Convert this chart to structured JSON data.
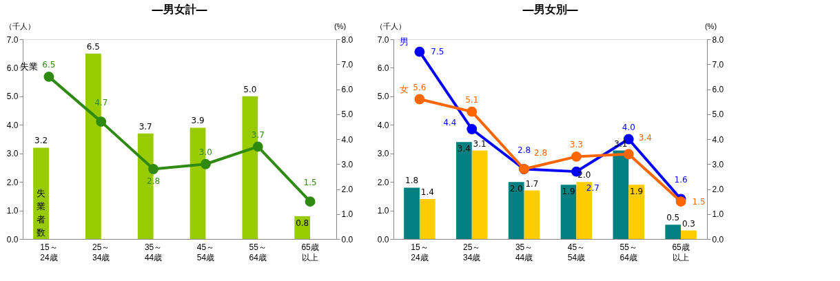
{
  "chart_data": [
    {
      "type": "bar",
      "title": "―男女計―",
      "ylabel": "（千人）",
      "y2label": "(%)",
      "categories": [
        "15～24歳",
        "25～34歳",
        "35～44歳",
        "45～54歳",
        "55～64歳",
        "65歳以上"
      ],
      "series": [
        {
          "name": "失業者数",
          "color": "#99cc00",
          "values": [
            3.2,
            6.5,
            3.7,
            3.9,
            5.0,
            0.8
          ],
          "value_labels": [
            "3.2",
            "6.5",
            "3.7",
            "3.9",
            "5.0",
            "0.8"
          ]
        },
        {
          "type": "line",
          "axis": "y2",
          "name": "失業",
          "color": "#2f8a12",
          "values": [
            6.5,
            4.7,
            2.8,
            3.0,
            3.7,
            1.5
          ],
          "value_labels": [
            "6.5",
            "4.7",
            "2.8",
            "3.0",
            "3.7",
            "1.5"
          ]
        }
      ],
      "ylim": [
        0,
        7
      ],
      "yticks": [
        {
          "value": 0,
          "label": "0.0"
        },
        {
          "value": 1,
          "label": "1.0"
        },
        {
          "value": 2,
          "label": "2.0"
        },
        {
          "value": 3,
          "label": "3.0"
        },
        {
          "value": 4,
          "label": "4.0"
        },
        {
          "value": 5,
          "label": "5.0"
        },
        {
          "value": 6,
          "label": "6.0"
        },
        {
          "value": 7,
          "label": "7.0"
        }
      ],
      "y2lim": [
        0,
        8
      ],
      "y2ticks": [
        {
          "value": 0,
          "label": "0.0"
        },
        {
          "value": 1,
          "label": "1.0"
        },
        {
          "value": 2,
          "label": "2.0"
        },
        {
          "value": 3,
          "label": "3.0"
        },
        {
          "value": 4,
          "label": "4.0"
        },
        {
          "value": 5,
          "label": "5.0"
        },
        {
          "value": 6,
          "label": "6.0"
        },
        {
          "value": 7,
          "label": "7.0"
        },
        {
          "value": 8,
          "label": "8.0"
        }
      ],
      "marker": "circle",
      "line_style": "solid"
    },
    {
      "type": "bar",
      "title": "―男女別―",
      "ylabel": "（千人）",
      "y2label": "(%)",
      "categories": [
        "15～24歳",
        "25～34歳",
        "35～44歳",
        "45～54歳",
        "55～64歳",
        "65歳以上"
      ],
      "series": [
        {
          "color": "#008080",
          "values": [
            1.8,
            3.4,
            2.0,
            1.9,
            3.1,
            0.5
          ],
          "value_labels": [
            "1.8",
            "3.4",
            "2.0",
            "1.9",
            "3.1",
            "0.5"
          ]
        },
        {
          "color": "#ffcc00",
          "values": [
            1.4,
            3.1,
            1.7,
            2.0,
            1.9,
            0.3
          ],
          "value_labels": [
            "1.4",
            "3.1",
            "1.7",
            "2.0",
            "1.9",
            "0.3"
          ]
        },
        {
          "type": "line",
          "axis": "y2",
          "name": "男",
          "color": "#0000ff",
          "values": [
            7.5,
            4.4,
            2.8,
            2.7,
            4.0,
            1.6
          ],
          "value_labels": [
            "7.5",
            "4.4",
            "2.8",
            "2.7",
            "4.0",
            "1.6"
          ]
        },
        {
          "type": "line",
          "axis": "y2",
          "name": "女",
          "color": "#ff6600",
          "values": [
            5.6,
            5.1,
            2.8,
            3.3,
            3.4,
            1.5
          ],
          "value_labels": [
            "5.6",
            "5.1",
            "2.8",
            "3.3",
            "3.4",
            "1.5"
          ]
        }
      ],
      "ylim": [
        0,
        7
      ],
      "yticks": [
        {
          "value": 0,
          "label": "0.0"
        },
        {
          "value": 1,
          "label": "1.0"
        },
        {
          "value": 2,
          "label": "2.0"
        },
        {
          "value": 3,
          "label": "3.0"
        },
        {
          "value": 4,
          "label": "4.0"
        },
        {
          "value": 5,
          "label": "5.0"
        },
        {
          "value": 6,
          "label": "6.0"
        },
        {
          "value": 7,
          "label": "7.0"
        }
      ],
      "y2lim": [
        0,
        8
      ],
      "y2ticks": [
        {
          "value": 0,
          "label": "0.0"
        },
        {
          "value": 1,
          "label": "1.0"
        },
        {
          "value": 2,
          "label": "2.0"
        },
        {
          "value": 3,
          "label": "3.0"
        },
        {
          "value": 4,
          "label": "4.0"
        },
        {
          "value": 5,
          "label": "5.0"
        },
        {
          "value": 6,
          "label": "6.0"
        },
        {
          "value": 7,
          "label": "7.0"
        },
        {
          "value": 8,
          "label": "8.0"
        }
      ],
      "marker": "circle",
      "line_style": "solid"
    }
  ]
}
